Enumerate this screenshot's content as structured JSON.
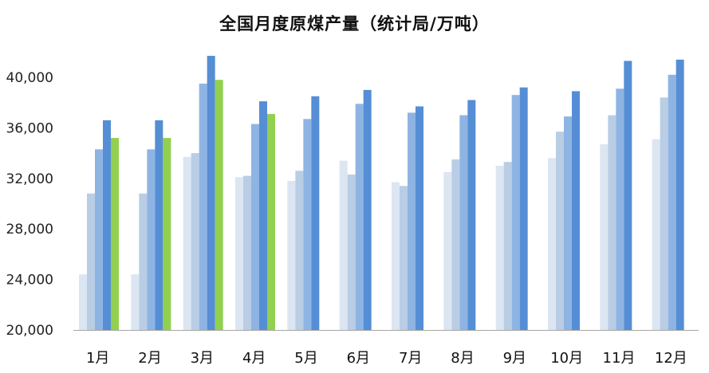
{
  "chart_data": {
    "type": "bar",
    "title": "全国月度原煤产量（统计局/万吨）",
    "xlabel": "",
    "ylabel": "",
    "ylim": [
      20000,
      42000
    ],
    "yticks": [
      "20,000",
      "24,000",
      "28,000",
      "32,000",
      "36,000",
      "40,000"
    ],
    "ytick_values": [
      20000,
      24000,
      28000,
      32000,
      36000,
      40000
    ],
    "categories": [
      "1月",
      "2月",
      "3月",
      "4月",
      "5月",
      "6月",
      "7月",
      "8月",
      "9月",
      "10月",
      "11月",
      "12月"
    ],
    "grid": false,
    "legend": "none",
    "series": [
      {
        "color": "#dce6f2",
        "values": [
          24400,
          24400,
          33700,
          32100,
          31800,
          33400,
          31700,
          32500,
          33000,
          33600,
          34700,
          35100
        ]
      },
      {
        "color": "#b9cde5",
        "values": [
          30800,
          30800,
          34000,
          32200,
          32600,
          32300,
          31400,
          33500,
          33300,
          35700,
          37000,
          38400
        ]
      },
      {
        "color": "#8eb4e3",
        "values": [
          34300,
          34300,
          39500,
          36300,
          36700,
          37900,
          37200,
          37000,
          38600,
          36900,
          39100,
          40200
        ]
      },
      {
        "color": "#558ed5",
        "values": [
          36600,
          36600,
          41700,
          38100,
          38500,
          39000,
          37700,
          38200,
          39200,
          38900,
          41300,
          41400
        ]
      },
      {
        "color": "#92d050",
        "values": [
          35200,
          35200,
          39800,
          37100,
          null,
          null,
          null,
          null,
          null,
          null,
          null,
          null
        ]
      }
    ]
  }
}
